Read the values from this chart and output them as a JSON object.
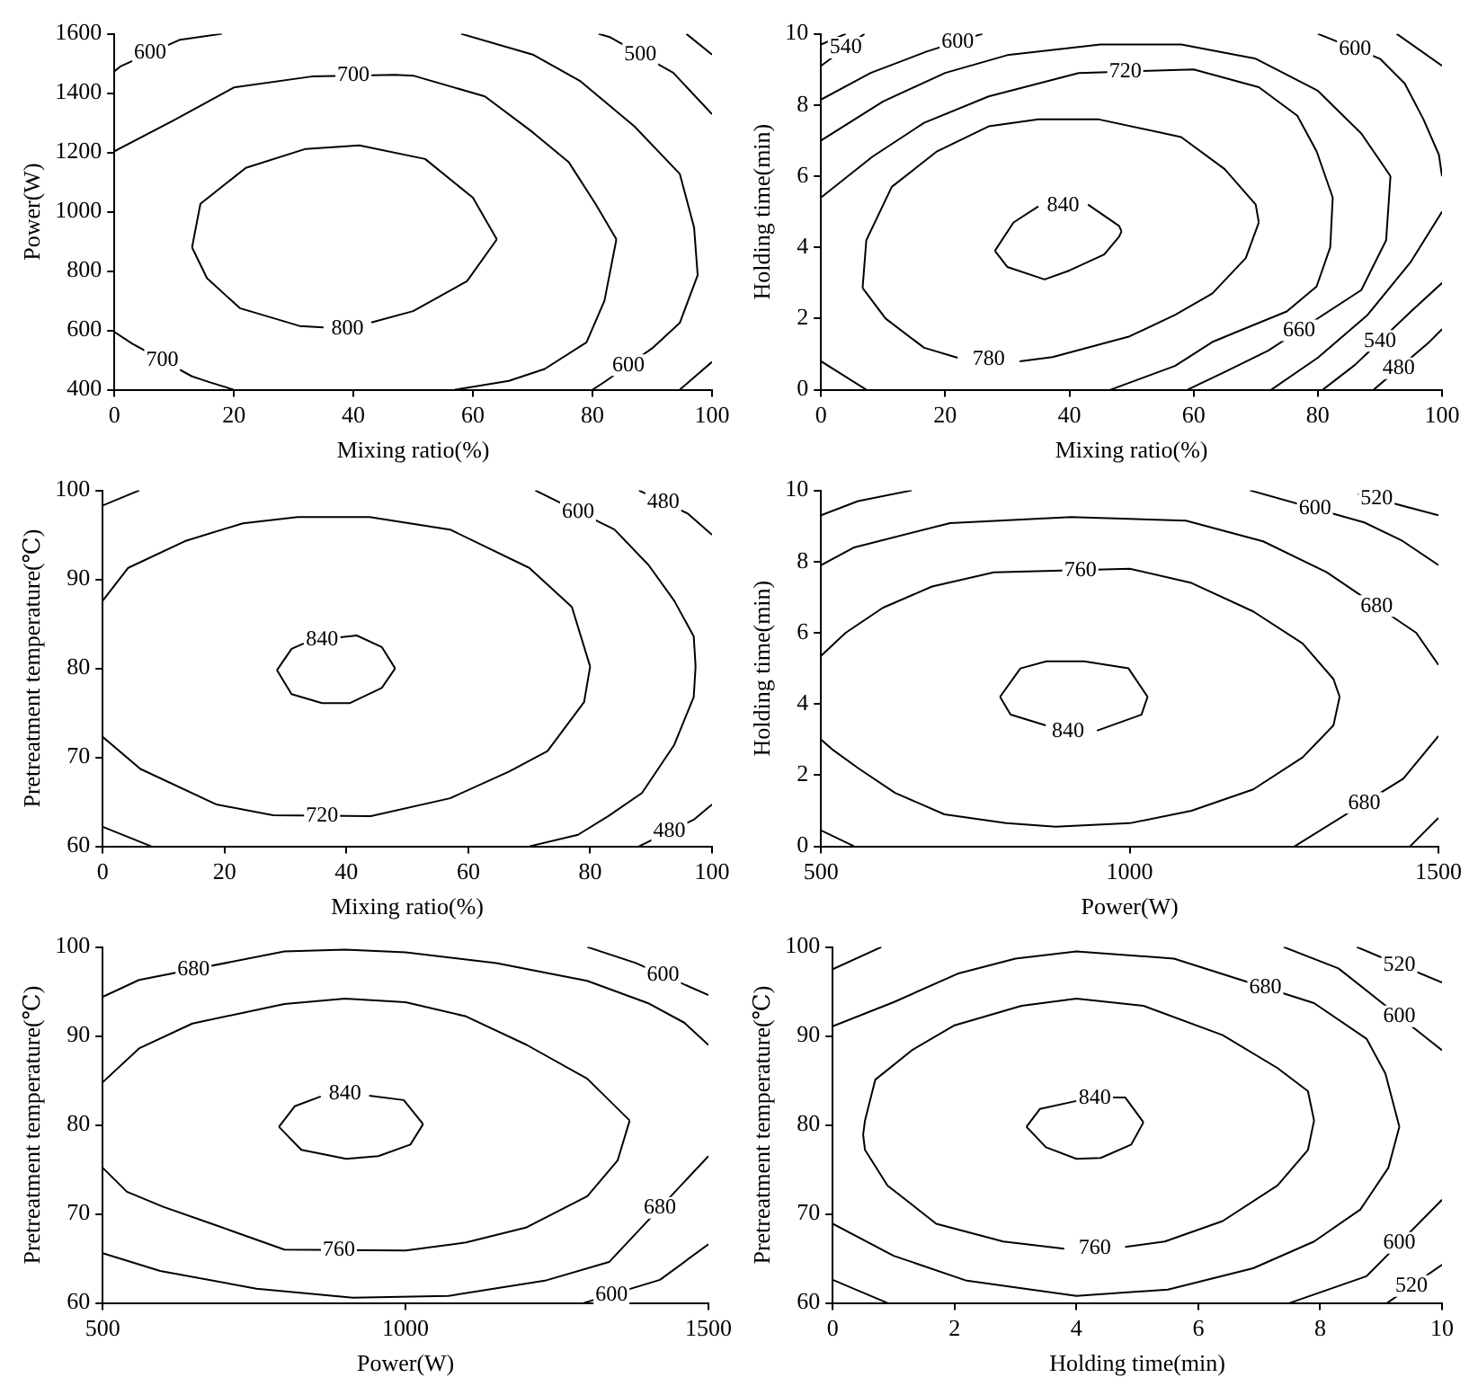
{
  "chart_data": [
    {
      "type": "line",
      "xlabel": "Mixing ratio(%)",
      "ylabel": "Power(W)",
      "xlim": [
        0,
        100
      ],
      "xticks": [
        0,
        20,
        40,
        60,
        80,
        100
      ],
      "ylim": [
        400,
        1600
      ],
      "yticks": [
        400,
        600,
        800,
        1000,
        1200,
        1400,
        1600
      ],
      "grid": false,
      "legend": false,
      "marker": "none",
      "line_style": "solid",
      "series": [
        {
          "color": "#000000",
          "x": [
            13,
            14.4,
            22,
            32,
            41,
            52,
            60,
            64
          ],
          "values": [
            880,
            1027,
            1148,
            1212,
            1224,
            1178,
            1047,
            907
          ]
        },
        {
          "color": "#000000",
          "x": [
            13,
            15.5,
            21,
            31,
            35,
            39,
            43,
            50,
            59,
            64
          ],
          "values": [
            880,
            776,
            675,
            615,
            610,
            null,
            627,
            665,
            766,
            907
          ]
        },
        {
          "color": "#000000",
          "x": [
            0,
            10,
            20,
            33,
            47,
            50,
            62,
            70,
            76,
            80.5,
            84
          ],
          "values": [
            1204,
            1309,
            1419,
            1456,
            1462,
            1459,
            1389,
            1268,
            1168,
            1027,
            907
          ]
        },
        {
          "color": "#000000",
          "x": [
            57,
            66,
            72,
            79,
            82,
            84
          ],
          "values": [
            400,
            430,
            470,
            560,
            700,
            907
          ]
        },
        {
          "color": "#000000",
          "x": [
            0,
            3,
            13,
            16,
            20
          ],
          "values": [
            595,
            555,
            445,
            425,
            400
          ]
        },
        {
          "color": "#000000",
          "x": [
            0,
            1,
            11,
            18
          ],
          "values": [
            1473,
            1490,
            1580,
            1600
          ]
        },
        {
          "color": "#000000",
          "x": [
            58,
            70,
            78,
            87,
            94.6,
            97,
            97.6,
            94.6,
            90,
            82,
            80
          ],
          "values": [
            1600,
            1530,
            1440,
            1288,
            1128,
            947,
            786,
            625,
            540,
            426,
            400
          ]
        },
        {
          "color": "#000000",
          "x": [
            81,
            83,
            93.5,
            100
          ],
          "values": [
            1600,
            1588,
            1469,
            1329
          ]
        },
        {
          "color": "#000000",
          "x": [
            95.7,
            100
          ],
          "values": [
            1600,
            1530
          ]
        },
        {
          "color": "#000000",
          "x": [
            94.6,
            100
          ],
          "values": [
            400,
            494
          ]
        }
      ],
      "annotations": [
        {
          "text": "600",
          "x": 6,
          "y": 1535
        },
        {
          "text": "700",
          "x": 40,
          "y": 1459
        },
        {
          "text": "500",
          "x": 88,
          "y": 1531
        },
        {
          "text": "800",
          "x": 39,
          "y": 607
        },
        {
          "text": "700",
          "x": 8,
          "y": 500
        },
        {
          "text": "600",
          "x": 86,
          "y": 483
        }
      ]
    },
    {
      "type": "line",
      "xlabel": "Mixing ratio(%)",
      "ylabel": "Holding time(min)",
      "xlim": [
        0,
        100
      ],
      "xticks": [
        0,
        20,
        40,
        60,
        80,
        100
      ],
      "ylim": [
        0,
        10
      ],
      "yticks": [
        0,
        2,
        4,
        6,
        8,
        10
      ],
      "grid": false,
      "legend": false,
      "marker": "none",
      "line_style": "solid",
      "series": [
        {
          "color": "#000000",
          "x": [
            28,
            31,
            35,
            39,
            43,
            48,
            48.4
          ],
          "values": [
            3.9,
            4.7,
            5.15,
            null,
            5.2,
            4.6,
            4.45
          ]
        },
        {
          "color": "#000000",
          "x": [
            28,
            30,
            36,
            40,
            45.6,
            48,
            48.4
          ],
          "values": [
            3.9,
            3.45,
            3.1,
            3.35,
            3.8,
            4.3,
            4.45
          ]
        },
        {
          "color": "#000000",
          "x": [
            6.7,
            7.3,
            11.4,
            18.7,
            27,
            35,
            44.6,
            58,
            65,
            70,
            70.5
          ],
          "values": [
            2.86,
            4.2,
            5.7,
            6.7,
            7.4,
            7.6,
            7.6,
            7.1,
            6.2,
            5.2,
            4.7
          ]
        },
        {
          "color": "#000000",
          "x": [
            6.7,
            10.4,
            16.6,
            22,
            27,
            32,
            37.3,
            49.7,
            57,
            63,
            68.4,
            70.5
          ],
          "values": [
            2.86,
            2,
            1.18,
            0.9,
            null,
            0.8,
            0.92,
            1.5,
            2.1,
            2.7,
            3.7,
            4.7
          ]
        },
        {
          "color": "#000000",
          "x": [
            0,
            8.3,
            16.6,
            27,
            41.5,
            60,
            70.5,
            76.7,
            79.8,
            82.4,
            82,
            79.8,
            75,
            68,
            63,
            57,
            46.6
          ],
          "values": [
            5.4,
            6.55,
            7.5,
            8.24,
            8.9,
            9,
            8.5,
            7.7,
            6.7,
            5.4,
            4,
            2.9,
            2.2,
            1.7,
            1.34,
            0.67,
            0
          ]
        },
        {
          "color": "#000000",
          "x": [
            0,
            7.3
          ],
          "values": [
            0.8,
            0
          ]
        },
        {
          "color": "#000000",
          "x": [
            0,
            10,
            20,
            30,
            45,
            58,
            70,
            80,
            87,
            91.7
          ],
          "values": [
            7,
            8.1,
            8.9,
            9.4,
            9.7,
            9.7,
            9.3,
            8.4,
            7.2,
            6
          ]
        },
        {
          "color": "#000000",
          "x": [
            59,
            65,
            72,
            87,
            91,
            91.7
          ],
          "values": [
            0,
            0.5,
            1.1,
            2.8,
            4.2,
            6
          ]
        },
        {
          "color": "#000000",
          "x": [
            0,
            8,
            17,
            26
          ],
          "values": [
            8.15,
            8.9,
            9.5,
            10
          ]
        },
        {
          "color": "#000000",
          "x": [
            80,
            90,
            94,
            97,
            99.5,
            100
          ],
          "values": [
            10,
            9.3,
            8.6,
            7.6,
            6.6,
            6
          ]
        },
        {
          "color": "#000000",
          "x": [
            72.5,
            80,
            88,
            95,
            100
          ],
          "values": [
            0,
            0.9,
            2.1,
            3.6,
            5
          ]
        },
        {
          "color": "#000000",
          "x": [
            0,
            7
          ],
          "values": [
            9.1,
            10
          ]
        },
        {
          "color": "#000000",
          "x": [
            92.7,
            100
          ],
          "values": [
            10,
            9.1
          ]
        },
        {
          "color": "#000000",
          "x": [
            80.8,
            86,
            95,
            100
          ],
          "values": [
            0,
            0.7,
            2.2,
            3
          ]
        },
        {
          "color": "#000000",
          "x": [
            0,
            4
          ],
          "values": [
            9.7,
            10
          ]
        },
        {
          "color": "#000000",
          "x": [
            89,
            98,
            100
          ],
          "values": [
            0,
            1.35,
            1.7
          ]
        }
      ],
      "annotations": [
        {
          "text": "540",
          "x": 4,
          "y": 9.61
        },
        {
          "text": "600",
          "x": 22,
          "y": 9.78
        },
        {
          "text": "720",
          "x": 49,
          "y": 8.94
        },
        {
          "text": "600",
          "x": 86,
          "y": 9.58
        },
        {
          "text": "840",
          "x": 39,
          "y": 5.17
        },
        {
          "text": "780",
          "x": 27,
          "y": 0.85
        },
        {
          "text": "660",
          "x": 77,
          "y": 1.67
        },
        {
          "text": "540",
          "x": 90,
          "y": 1.37
        },
        {
          "text": "480",
          "x": 93,
          "y": 0.6
        }
      ]
    },
    {
      "type": "line",
      "xlabel": "Mixing ratio(%)",
      "ylabel": "Pretreatment temperature(℃)",
      "xlim": [
        0,
        100
      ],
      "xticks": [
        0,
        20,
        40,
        60,
        80,
        100
      ],
      "ylim": [
        60,
        100
      ],
      "yticks": [
        60,
        70,
        80,
        90,
        100
      ],
      "grid": false,
      "legend": false,
      "marker": "none",
      "line_style": "solid",
      "series": [
        {
          "color": "#000000",
          "x": [
            28.6,
            31,
            33,
            36,
            39,
            41.7,
            45.8,
            48
          ],
          "values": [
            79.8,
            82.2,
            82.8,
            null,
            83.5,
            83.7,
            82.4,
            80
          ]
        },
        {
          "color": "#000000",
          "x": [
            28.6,
            31,
            36,
            40.6,
            45.8,
            48
          ],
          "values": [
            79.8,
            77.1,
            76.1,
            76.1,
            77.8,
            80
          ]
        },
        {
          "color": "#000000",
          "x": [
            0,
            4.2,
            13.5,
            23,
            32,
            43.8,
            57,
            70,
            77,
            80
          ],
          "values": [
            87.6,
            91.3,
            94.3,
            96.3,
            97,
            97,
            95.6,
            91.3,
            86.9,
            80.2
          ]
        },
        {
          "color": "#000000",
          "x": [
            0,
            6.2,
            18.7,
            28,
            44,
            57,
            66.7,
            73,
            79,
            80
          ],
          "values": [
            72.3,
            68.7,
            64.7,
            63.5,
            63.4,
            65.4,
            68.4,
            70.7,
            76.2,
            80.2
          ]
        },
        {
          "color": "#000000",
          "x": [
            0,
            6
          ],
          "values": [
            98.3,
            100
          ]
        },
        {
          "color": "#000000",
          "x": [
            71,
            84,
            89.6,
            93.8,
            97,
            97.3,
            97,
            93.8,
            88.5,
            83,
            78,
            70
          ],
          "values": [
            100,
            95.6,
            91.6,
            87.6,
            83.6,
            80.2,
            76.8,
            71.4,
            66,
            63.4,
            61.3,
            60
          ]
        },
        {
          "color": "#000000",
          "x": [
            0,
            8
          ],
          "values": [
            62.2,
            60
          ]
        },
        {
          "color": "#000000",
          "x": [
            88,
            96,
            100
          ],
          "values": [
            100,
            97.4,
            95
          ]
        },
        {
          "color": "#000000",
          "x": [
            88,
            97,
            100
          ],
          "values": [
            60,
            63,
            64.7
          ]
        }
      ],
      "annotations": [
        {
          "text": "840",
          "x": 36,
          "y": 83.2
        },
        {
          "text": "720",
          "x": 36,
          "y": 63.45
        },
        {
          "text": "600",
          "x": 78,
          "y": 97.6
        },
        {
          "text": "480",
          "x": 92,
          "y": 98.7
        },
        {
          "text": "480",
          "x": 93,
          "y": 61.67
        }
      ]
    },
    {
      "type": "line",
      "xlabel": "Power(W)",
      "ylabel": "Holding time(min)",
      "xlim": [
        500,
        1500
      ],
      "xticks": [
        500,
        1000,
        1500
      ],
      "ylim": [
        0,
        10
      ],
      "yticks": [
        0,
        2,
        4,
        6,
        8,
        10
      ],
      "grid": false,
      "legend": false,
      "marker": "none",
      "line_style": "solid",
      "series": [
        {
          "color": "#000000",
          "x": [
            790,
            823,
            865,
            926,
            998,
            1029
          ],
          "values": [
            4.2,
            5,
            5.2,
            5.2,
            5,
            4.2
          ]
        },
        {
          "color": "#000000",
          "x": [
            790,
            807,
            864,
            900,
            947,
            1019,
            1029
          ],
          "values": [
            4.2,
            3.7,
            3.4,
            null,
            3.25,
            3.7,
            4.2
          ]
        },
        {
          "color": "#000000",
          "x": [
            500,
            540,
            600,
            680,
            780,
            1000,
            1100,
            1200,
            1280,
            1330,
            1340
          ],
          "values": [
            5.35,
            6,
            6.7,
            7.3,
            7.7,
            7.8,
            7.4,
            6.6,
            5.7,
            4.7,
            4.2
          ]
        },
        {
          "color": "#000000",
          "x": [
            500,
            520,
            560,
            620,
            700,
            800,
            880,
            1000,
            1100,
            1200,
            1280,
            1330,
            1340
          ],
          "values": [
            3,
            2.7,
            2.2,
            1.5,
            0.9,
            0.65,
            0.55,
            0.65,
            1,
            1.6,
            2.5,
            3.4,
            4.2
          ]
        },
        {
          "color": "#000000",
          "x": [
            500,
            554,
            709,
            905,
            1091,
            1216,
            1319,
            1464,
            1500
          ],
          "values": [
            7.9,
            8.4,
            9.08,
            9.25,
            9.15,
            8.57,
            7.7,
            6,
            5.1
          ]
        },
        {
          "color": "#000000",
          "x": [
            1267,
            1443,
            1500
          ],
          "values": [
            0,
            1.9,
            3.1
          ]
        },
        {
          "color": "#000000",
          "x": [
            500,
            554
          ],
          "values": [
            0.45,
            0
          ]
        },
        {
          "color": "#000000",
          "x": [
            500,
            560,
            647
          ],
          "values": [
            9.3,
            9.7,
            10
          ]
        },
        {
          "color": "#000000",
          "x": [
            1195,
            1380,
            1440,
            1500
          ],
          "values": [
            10,
            9.1,
            8.6,
            7.9
          ]
        },
        {
          "color": "#000000",
          "x": [
            1370,
            1500
          ],
          "values": [
            9.9,
            9.3
          ]
        },
        {
          "color": "#000000",
          "x": [
            1454,
            1500
          ],
          "values": [
            0,
            0.8
          ]
        }
      ],
      "annotations": [
        {
          "text": "760",
          "x": 920,
          "y": 7.76
        },
        {
          "text": "840",
          "x": 900,
          "y": 3.22
        },
        {
          "text": "600",
          "x": 1300,
          "y": 9.49
        },
        {
          "text": "520",
          "x": 1400,
          "y": 9.76
        },
        {
          "text": "680",
          "x": 1400,
          "y": 6.75
        },
        {
          "text": "680",
          "x": 1380,
          "y": 1.22
        }
      ]
    },
    {
      "type": "line",
      "xlabel": "Power(W)",
      "ylabel": "Pretreatment temperature(℃)",
      "xlim": [
        500,
        1500
      ],
      "xticks": [
        500,
        1000,
        1500
      ],
      "ylim": [
        60,
        100
      ],
      "yticks": [
        60,
        70,
        80,
        90,
        100
      ],
      "grid": false,
      "legend": false,
      "marker": "none",
      "line_style": "solid",
      "series": [
        {
          "color": "#000000",
          "x": [
            791,
            817,
            860,
            900,
            940,
            997,
            1029
          ],
          "values": [
            79.8,
            82.1,
            83.2,
            null,
            83.3,
            82.8,
            80.1
          ]
        },
        {
          "color": "#000000",
          "x": [
            791,
            828,
            902,
            955,
            1008,
            1029
          ],
          "values": [
            79.8,
            77.2,
            76.2,
            76.5,
            77.8,
            80.1
          ]
        },
        {
          "color": "#000000",
          "x": [
            500,
            560,
            648,
            800,
            900,
            1000,
            1100,
            1200,
            1300,
            1370
          ],
          "values": [
            84.8,
            88.6,
            91.4,
            93.6,
            94.2,
            93.8,
            92.2,
            89,
            85.2,
            80.5
          ]
        },
        {
          "color": "#000000",
          "x": [
            500,
            540,
            600,
            680,
            800,
            1000,
            1100,
            1200,
            1300,
            1350,
            1370
          ],
          "values": [
            75.2,
            72.5,
            70.8,
            68.9,
            66,
            65.9,
            66.8,
            68.5,
            72,
            76,
            80.5
          ]
        },
        {
          "color": "#000000",
          "x": [
            500,
            560,
            800,
            900,
            1000,
            1150,
            1300,
            1400,
            1460,
            1500
          ],
          "values": [
            94.4,
            96.3,
            99.5,
            99.7,
            99.4,
            98.2,
            96.2,
            93.7,
            91.5,
            89
          ]
        },
        {
          "color": "#000000",
          "x": [
            500,
            595,
            754,
            913,
            1071,
            1230,
            1336,
            1500
          ],
          "values": [
            65.6,
            63.6,
            61.6,
            60.6,
            60.8,
            62.5,
            64.6,
            76.5
          ]
        },
        {
          "color": "#000000",
          "x": [
            1300,
            1380,
            1500
          ],
          "values": [
            100,
            98.2,
            94.6
          ]
        },
        {
          "color": "#000000",
          "x": [
            1294,
            1420,
            1500
          ],
          "values": [
            60,
            62.6,
            66.6
          ]
        }
      ],
      "annotations": [
        {
          "text": "680",
          "x": 650,
          "y": 97.5
        },
        {
          "text": "600",
          "x": 1425,
          "y": 96.85
        },
        {
          "text": "840",
          "x": 900,
          "y": 83.5
        },
        {
          "text": "680",
          "x": 1420,
          "y": 70.7
        },
        {
          "text": "760",
          "x": 890,
          "y": 65.95
        },
        {
          "text": "600",
          "x": 1340,
          "y": 60.95
        }
      ]
    },
    {
      "type": "line",
      "xlabel": "Holding time(min)",
      "ylabel": "Pretreatment temperature(℃)",
      "xlim": [
        0,
        10
      ],
      "xticks": [
        0,
        2,
        4,
        6,
        8,
        10
      ],
      "ylim": [
        60,
        100
      ],
      "yticks": [
        60,
        70,
        80,
        90,
        100
      ],
      "grid": false,
      "legend": false,
      "marker": "none",
      "line_style": "solid",
      "series": [
        {
          "color": "#000000",
          "x": [
            3.18,
            3.4,
            4,
            4.3,
            4.6,
            4.8,
            5.1
          ],
          "values": [
            79.8,
            81.8,
            82.7,
            null,
            83.1,
            83.1,
            80.3
          ]
        },
        {
          "color": "#000000",
          "x": [
            3.18,
            3.5,
            4,
            4.4,
            4.9,
            5.1
          ],
          "values": [
            79.8,
            77.5,
            76.2,
            76.3,
            77.8,
            80.3
          ]
        },
        {
          "color": "#000000",
          "x": [
            4.8,
            5.45,
            6.4,
            7.3,
            7.8,
            7.9,
            7.8,
            7.3,
            6.4,
            5.1,
            4,
            3.1,
            2,
            1.3,
            0.7,
            0.53,
            0.5,
            0.53,
            0.9,
            1.7,
            2.8,
            3.8
          ],
          "values": [
            66.3,
            66.9,
            69.2,
            73.2,
            77.2,
            80.5,
            83.8,
            86.4,
            90.1,
            93.4,
            94.2,
            93.4,
            91.2,
            88.4,
            85.1,
            80.5,
            78.9,
            77.2,
            73.2,
            68.9,
            66.9,
            66.1
          ]
        },
        {
          "color": "#000000",
          "x": [
            0,
            1,
            2.05,
            3,
            4,
            5.6,
            7.9,
            8.76,
            9.07,
            9.3
          ],
          "values": [
            91.1,
            93.8,
            97,
            98.7,
            99.5,
            98.7,
            93.7,
            89.7,
            85.8,
            79.8
          ]
        },
        {
          "color": "#000000",
          "x": [
            0,
            1,
            2.2,
            4,
            5.5,
            6.9,
            7.9,
            8.66,
            9.12,
            9.3
          ],
          "values": [
            68.9,
            65.3,
            62.5,
            60.8,
            61.5,
            63.9,
            66.9,
            70.5,
            75.2,
            79.8
          ]
        },
        {
          "color": "#000000",
          "x": [
            0,
            0.8
          ],
          "values": [
            97.5,
            100
          ]
        },
        {
          "color": "#000000",
          "x": [
            7.4,
            8.3,
            10
          ],
          "values": [
            100,
            97.6,
            88.4
          ]
        },
        {
          "color": "#000000",
          "x": [
            7.5,
            8.76,
            10
          ],
          "values": [
            60,
            63,
            71.6
          ]
        },
        {
          "color": "#000000",
          "x": [
            0,
            0.9
          ],
          "values": [
            62.6,
            60
          ]
        },
        {
          "color": "#000000",
          "x": [
            8.6,
            10
          ],
          "values": [
            100,
            96
          ]
        },
        {
          "color": "#000000",
          "x": [
            9.1,
            10
          ],
          "values": [
            60,
            64.3
          ]
        }
      ],
      "annotations": [
        {
          "text": "680",
          "x": 7.1,
          "y": 95.4
        },
        {
          "text": "520",
          "x": 9.3,
          "y": 98
        },
        {
          "text": "600",
          "x": 9.3,
          "y": 92.2
        },
        {
          "text": "840",
          "x": 4.3,
          "y": 83
        },
        {
          "text": "760",
          "x": 4.3,
          "y": 66.2
        },
        {
          "text": "600",
          "x": 9.3,
          "y": 66.75
        },
        {
          "text": "520",
          "x": 9.5,
          "y": 61.91
        }
      ]
    }
  ]
}
